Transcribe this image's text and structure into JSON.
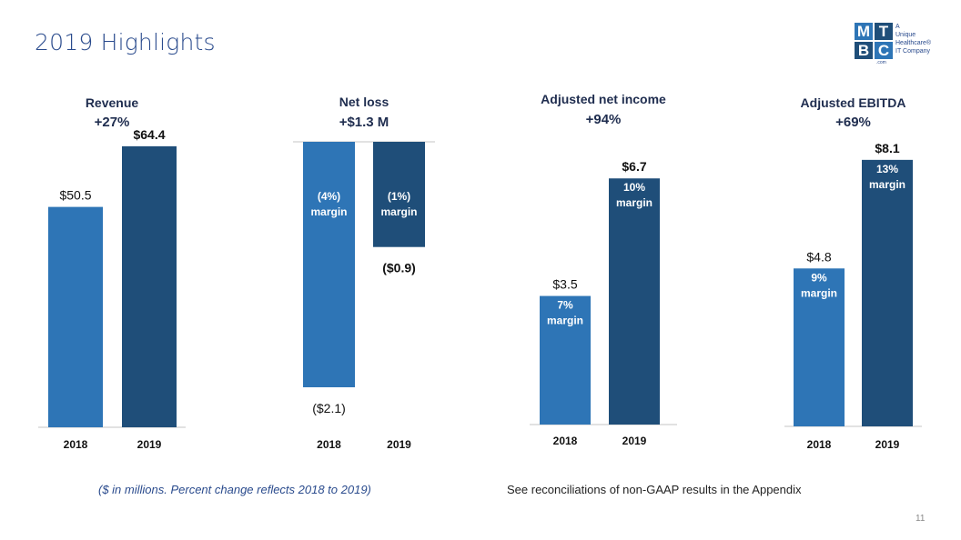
{
  "slide": {
    "title": "2019 Highlights",
    "footnote": "($ in millions. Percent change reflects 2018 to 2019)",
    "appendix_note": "See reconciliations of non-GAAP results in the Appendix",
    "page_number": "11"
  },
  "logo": {
    "letters": [
      "M",
      "T",
      "B",
      "C"
    ],
    "tagline": [
      "A",
      "Unique",
      "Healthcare",
      "IT Company"
    ],
    "registered": "®",
    "suffix": ".com"
  },
  "colors": {
    "bar_2018": "#2e75b6",
    "bar_2019": "#1f4e79",
    "title_blue": "#2a4b8d",
    "axis": "#d9d9d9"
  },
  "chart_data": [
    {
      "type": "bar",
      "title": "Revenue",
      "subtitle": "+27%",
      "categories": [
        "2018",
        "2019"
      ],
      "values": [
        50.5,
        64.4
      ],
      "value_labels": [
        "$50.5",
        "$64.4"
      ],
      "inner_labels": [
        [],
        []
      ],
      "ylim": [
        0,
        70
      ]
    },
    {
      "type": "bar",
      "title": "Net loss",
      "subtitle": "+$1.3 M",
      "categories": [
        "2018",
        "2019"
      ],
      "values": [
        -2.1,
        -0.9
      ],
      "value_labels": [
        "($2.1)",
        "($0.9)"
      ],
      "inner_labels": [
        [
          "(4%)",
          "margin"
        ],
        [
          "(1%)",
          "margin"
        ]
      ],
      "ylim": [
        -2.1,
        0
      ]
    },
    {
      "type": "bar",
      "title": "Adjusted net income",
      "subtitle": "+94%",
      "categories": [
        "2018",
        "2019"
      ],
      "values": [
        3.5,
        6.7
      ],
      "value_labels": [
        "$3.5",
        "$6.7"
      ],
      "inner_labels": [
        [
          "7%",
          "margin"
        ],
        [
          "10%",
          "margin"
        ]
      ],
      "ylim": [
        0,
        7.3
      ]
    },
    {
      "type": "bar",
      "title": "Adjusted EBITDA",
      "subtitle": "+69%",
      "categories": [
        "2018",
        "2019"
      ],
      "values": [
        4.8,
        8.1
      ],
      "value_labels": [
        "$4.8",
        "$8.1"
      ],
      "inner_labels": [
        [
          "9%",
          "margin"
        ],
        [
          "13%",
          "margin"
        ]
      ],
      "ylim": [
        0,
        8.4
      ]
    }
  ]
}
